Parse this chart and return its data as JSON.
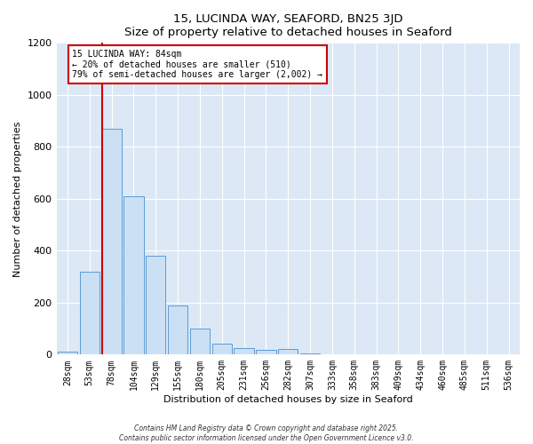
{
  "title": "15, LUCINDA WAY, SEAFORD, BN25 3JD",
  "subtitle": "Size of property relative to detached houses in Seaford",
  "xlabel": "Distribution of detached houses by size in Seaford",
  "ylabel": "Number of detached properties",
  "bin_labels": [
    "28sqm",
    "53sqm",
    "78sqm",
    "104sqm",
    "129sqm",
    "155sqm",
    "180sqm",
    "205sqm",
    "231sqm",
    "256sqm",
    "282sqm",
    "307sqm",
    "333sqm",
    "358sqm",
    "383sqm",
    "409sqm",
    "434sqm",
    "460sqm",
    "485sqm",
    "511sqm",
    "536sqm"
  ],
  "bar_values": [
    10,
    320,
    870,
    610,
    380,
    190,
    100,
    43,
    25,
    18,
    20,
    4,
    0,
    0,
    0,
    0,
    0,
    0,
    0,
    0,
    2
  ],
  "bar_color": "#cce0f5",
  "bar_edge_color": "#5b9bd5",
  "vline_color": "#cc0000",
  "annotation_title": "15 LUCINDA WAY: 84sqm",
  "annotation_line1": "← 20% of detached houses are smaller (510)",
  "annotation_line2": "79% of semi-detached houses are larger (2,002) →",
  "annotation_box_color": "#ffffff",
  "annotation_box_edge": "#cc0000",
  "ylim": [
    0,
    1200
  ],
  "yticks": [
    0,
    200,
    400,
    600,
    800,
    1000,
    1200
  ],
  "fig_bg_color": "#ffffff",
  "plot_bg_color": "#dce8f5",
  "grid_color": "#ffffff",
  "footer1": "Contains HM Land Registry data © Crown copyright and database right 2025.",
  "footer2": "Contains public sector information licensed under the Open Government Licence v3.0."
}
